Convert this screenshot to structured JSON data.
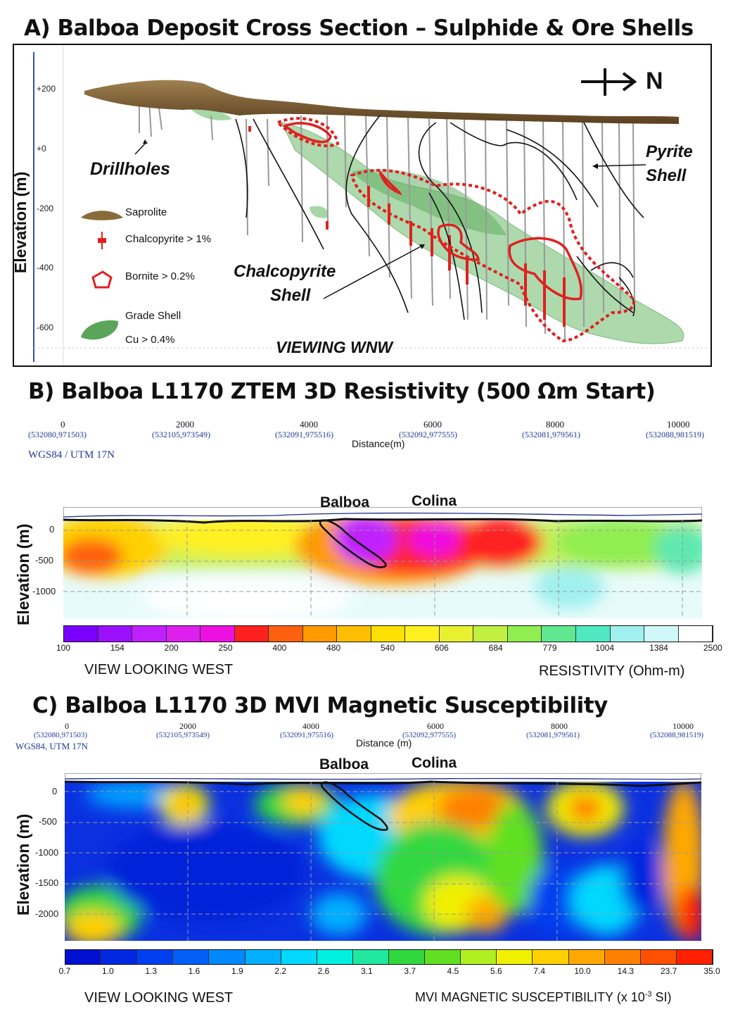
{
  "panel_a": {
    "title": "A) Balboa Deposit Cross Section – Sulphide & Ore Shells",
    "ylabel": "Elevation (m)",
    "y_ticks": [
      "+200",
      "+0",
      "-200",
      "-400",
      "-600"
    ],
    "north_label": "N",
    "labels": {
      "drillholes": "Drillholes",
      "pyrite_shell_1": "Pyrite",
      "pyrite_shell_2": "Shell",
      "chalco_shell_1": "Chalcopyrite",
      "chalco_shell_2": "Shell",
      "viewing": "VIEWING WNW"
    },
    "legend": [
      {
        "label": "Saprolite",
        "icon": "saprolite-swatch",
        "color": "#8a6a3a"
      },
      {
        "label": "Chalcopyrite > 1%",
        "icon": "chalcopyrite-marker",
        "color": "#e02020"
      },
      {
        "label": "Bornite > 0.2%",
        "icon": "bornite-outline",
        "color": "#e02020"
      },
      {
        "label": "Grade Shell",
        "icon": "grade-shell-swatch",
        "color": "#5aa55a"
      },
      {
        "label": "Cu > 0.4%",
        "icon": "",
        "color": ""
      }
    ]
  },
  "panel_b": {
    "title": "B) Balboa L1170 ZTEM 3D Resistivity (500 Ωm Start)",
    "distance_ticks": [
      {
        "dist": "0",
        "coord": "(532080,971503)"
      },
      {
        "dist": "2000",
        "coord": "(532105,973549)"
      },
      {
        "dist": "4000",
        "coord": "(532091,975516)"
      },
      {
        "dist": "6000",
        "coord": "(532092,977555)"
      },
      {
        "dist": "8000",
        "coord": "(532081,979561)"
      },
      {
        "dist": "10000",
        "coord": "(532088,981519)"
      }
    ],
    "distance_label": "Distance(m)",
    "projection": "WGS84 / UTM 17N",
    "ylabel": "Elevation (m)",
    "y_ticks": [
      "0",
      "-500",
      "-1000"
    ],
    "balboa_label": "Balboa",
    "colina_label": "Colina",
    "colorbar_ticks": [
      "100",
      "154",
      "200",
      "250",
      "400",
      "480",
      "540",
      "606",
      "684",
      "779",
      "1004",
      "1384",
      "2500"
    ],
    "colorbar_colors": [
      "#7a00ff",
      "#9a10ff",
      "#c020ff",
      "#dd20ee",
      "#ee10e0",
      "#ff2020",
      "#ff6010",
      "#ff9a00",
      "#ffbf00",
      "#ffe000",
      "#fff020",
      "#e8f030",
      "#c0f040",
      "#90ee50",
      "#60e890",
      "#50e8c0",
      "#a0f0f0",
      "#d0f8f8",
      "#ffffff"
    ],
    "caption_left": "VIEW LOOKING WEST",
    "caption_right": "RESISTIVITY (Ohm-m)"
  },
  "panel_c": {
    "title": "C) Balboa L1170  3D MVI Magnetic Susceptibility",
    "distance_ticks": [
      {
        "dist": "0",
        "coord": "(532080,971503)"
      },
      {
        "dist": "2000",
        "coord": "(532105,973549)"
      },
      {
        "dist": "4000",
        "coord": "(532091,975516)"
      },
      {
        "dist": "6000",
        "coord": "(532092,977555)"
      },
      {
        "dist": "8000",
        "coord": "(532081,979561)"
      },
      {
        "dist": "10000",
        "coord": "(532088,981519)"
      }
    ],
    "distance_label": "Distance (m)",
    "projection": "WGS84, UTM 17N",
    "ylabel": "Elevation (m)",
    "y_ticks": [
      "0",
      "-500",
      "-1000",
      "-1500",
      "-2000"
    ],
    "balboa_label": "Balboa",
    "colina_label": "Colina",
    "colorbar_ticks": [
      "0.7",
      "1.0",
      "1.3",
      "1.6",
      "1.9",
      "2.2",
      "2.6",
      "3.1",
      "3.7",
      "4.5",
      "5.6",
      "7.4",
      "10.0",
      "14.3",
      "23.7",
      "35.0"
    ],
    "colorbar_colors": [
      "#0010d0",
      "#0028e0",
      "#0040f0",
      "#0060f8",
      "#0088ff",
      "#00b0ff",
      "#00d8ff",
      "#00f0e0",
      "#20e8a0",
      "#30d840",
      "#60e020",
      "#b0f020",
      "#f0f000",
      "#ffd000",
      "#ffa800",
      "#ff8000",
      "#ff5000",
      "#ff2000"
    ],
    "caption_left": "VIEW LOOKING WEST",
    "caption_right_main": "MVI MAGNETIC SUSCEPTIBILITY (x 10",
    "caption_right_sup": "-3",
    "caption_right_end": " SI)"
  }
}
